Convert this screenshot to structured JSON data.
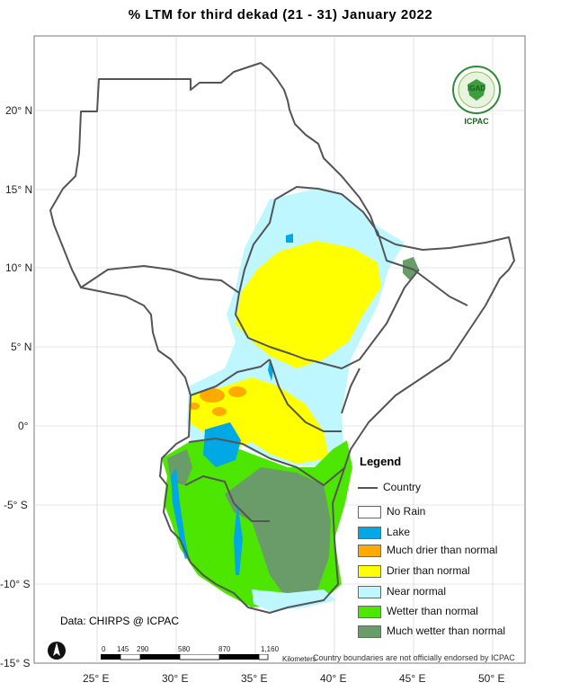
{
  "title": "% LTM for  third  dekad (21 - 31)  January 2022",
  "latitude_labels": [
    "20° N",
    "15° N",
    "10° N",
    "5° N",
    "0°",
    "-5° S",
    "-10° S",
    "-15° S"
  ],
  "longitude_labels": [
    "25° E",
    "30° E",
    "35° E",
    "40° E",
    "45° E",
    "50° E"
  ],
  "legend": {
    "title": "Legend",
    "country_line_label": "Country",
    "items": [
      {
        "label": "No Rain",
        "color": "#ffffff"
      },
      {
        "label": "Lake",
        "color": "#00a9e6"
      },
      {
        "label": "Much drier than normal",
        "color": "#ffaa00"
      },
      {
        "label": "Drier than normal",
        "color": "#ffff00"
      },
      {
        "label": "Near normal",
        "color": "#bef7ff"
      },
      {
        "label": "Wetter than normal",
        "color": "#4ce600"
      },
      {
        "label": "Much wetter than normal",
        "color": "#6a9c6a"
      }
    ]
  },
  "data_credit": "Data: CHIRPS @ ICPAC",
  "scale_bar": {
    "labels": [
      "0",
      "145",
      "290",
      "580",
      "870",
      "1,160"
    ],
    "unit": "Kilometers"
  },
  "disclaimer": "Country boundaries are not officially endorsed by ICPAC",
  "logo": {
    "top_text": "IGAD",
    "bottom_text": "ICPAC"
  }
}
